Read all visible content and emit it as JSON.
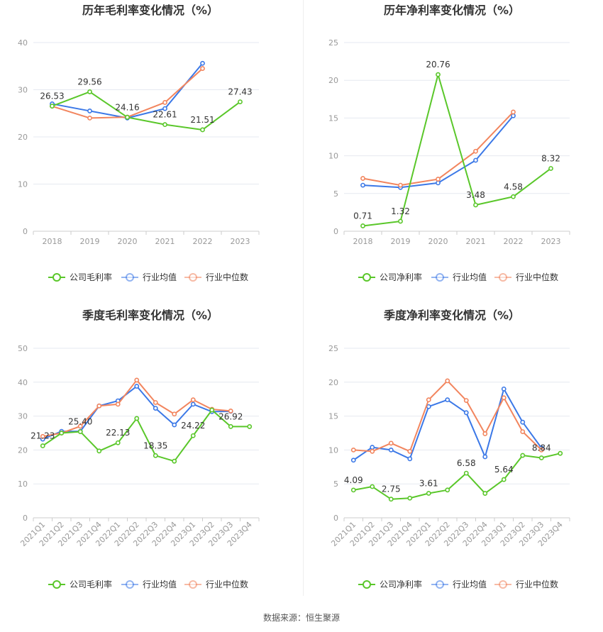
{
  "source_label": "数据来源：恒生聚源",
  "colors": {
    "company": "#5ac72a",
    "industry_avg": "#3b78e7",
    "industry_median": "#f2855e",
    "grid": "#e6e9f0",
    "axis": "#cccccc"
  },
  "chart_data": [
    {
      "type": "line",
      "title": "历年毛利率变化情况（%）",
      "categories": [
        "2018",
        "2019",
        "2020",
        "2021",
        "2022",
        "2023"
      ],
      "ylim": [
        0,
        40
      ],
      "yticks": [
        0,
        10,
        20,
        30,
        40
      ],
      "grid": true,
      "legend": "bottom",
      "series": [
        {
          "name": "公司毛利率",
          "key": "company",
          "values": [
            26.53,
            29.56,
            24.16,
            22.61,
            21.51,
            27.43
          ],
          "labels": [
            "26.53",
            "29.56",
            "24.16",
            "22.61",
            "21.51",
            "27.43"
          ]
        },
        {
          "name": "行业均值",
          "key": "industry_avg",
          "values": [
            27.0,
            25.5,
            24.0,
            26.0,
            35.6,
            null
          ]
        },
        {
          "name": "行业中位数",
          "key": "industry_median",
          "values": [
            26.5,
            24.0,
            24.2,
            27.3,
            34.5,
            null
          ]
        }
      ]
    },
    {
      "type": "line",
      "title": "历年净利率变化情况（%）",
      "categories": [
        "2018",
        "2019",
        "2020",
        "2021",
        "2022",
        "2023"
      ],
      "ylim": [
        0,
        25
      ],
      "yticks": [
        0,
        5,
        10,
        15,
        20,
        25
      ],
      "grid": true,
      "legend": "bottom",
      "series": [
        {
          "name": "公司净利率",
          "key": "company",
          "values": [
            0.71,
            1.32,
            20.76,
            3.48,
            4.58,
            8.32
          ],
          "labels": [
            "0.71",
            "1.32",
            "20.76",
            "3.48",
            "4.58",
            "8.32"
          ]
        },
        {
          "name": "行业均值",
          "key": "industry_avg",
          "values": [
            6.1,
            5.8,
            6.4,
            9.4,
            15.3,
            null
          ]
        },
        {
          "name": "行业中位数",
          "key": "industry_median",
          "values": [
            7.0,
            6.1,
            6.9,
            10.6,
            15.8,
            null
          ]
        }
      ]
    },
    {
      "type": "line",
      "title": "季度毛利率变化情况（%）",
      "categories": [
        "2021Q1",
        "2021Q2",
        "2021Q3",
        "2021Q4",
        "2022Q1",
        "2022Q2",
        "2022Q3",
        "2022Q4",
        "2023Q1",
        "2023Q2",
        "2023Q3",
        "2023Q4"
      ],
      "ylim": [
        0,
        50
      ],
      "yticks": [
        0,
        10,
        20,
        30,
        40,
        50
      ],
      "grid": true,
      "legend": "bottom",
      "series": [
        {
          "name": "公司毛利率",
          "key": "company",
          "values": [
            21.23,
            25.0,
            25.4,
            19.7,
            22.13,
            29.3,
            18.35,
            16.7,
            24.22,
            31.8,
            26.92,
            26.9
          ],
          "labels": [
            "21.23",
            null,
            "25.40",
            null,
            "22.13",
            null,
            "18.35",
            null,
            "24.22",
            null,
            "26.92",
            null
          ]
        },
        {
          "name": "行业均值",
          "key": "industry_avg",
          "values": [
            23.2,
            25.5,
            25.5,
            33.0,
            34.5,
            38.8,
            32.3,
            27.4,
            33.5,
            31.3,
            31.4,
            null
          ]
        },
        {
          "name": "行业中位数",
          "key": "industry_median",
          "values": [
            24.0,
            25.0,
            27.0,
            33.0,
            33.5,
            40.6,
            34.0,
            30.6,
            34.8,
            32.0,
            31.5,
            null
          ]
        }
      ]
    },
    {
      "type": "line",
      "title": "季度净利率变化情况（%）",
      "categories": [
        "2021Q1",
        "2021Q2",
        "2021Q3",
        "2021Q4",
        "2022Q1",
        "2022Q2",
        "2022Q3",
        "2022Q4",
        "2023Q1",
        "2023Q2",
        "2023Q3",
        "2023Q4"
      ],
      "ylim": [
        0,
        25
      ],
      "yticks": [
        0,
        5,
        10,
        15,
        20,
        25
      ],
      "grid": true,
      "legend": "bottom",
      "series": [
        {
          "name": "公司净利率",
          "key": "company",
          "values": [
            4.09,
            4.6,
            2.75,
            2.9,
            3.61,
            4.1,
            6.58,
            3.6,
            5.64,
            9.2,
            8.84,
            9.5
          ],
          "labels": [
            "4.09",
            null,
            "2.75",
            null,
            "3.61",
            null,
            "6.58",
            null,
            "5.64",
            null,
            "8.84",
            null
          ]
        },
        {
          "name": "行业均值",
          "key": "industry_avg",
          "values": [
            8.5,
            10.4,
            10.0,
            8.7,
            16.4,
            17.4,
            15.5,
            9.0,
            19.0,
            14.1,
            10.3,
            null
          ]
        },
        {
          "name": "行业中位数",
          "key": "industry_median",
          "values": [
            10.0,
            9.8,
            11.0,
            9.8,
            17.4,
            20.2,
            17.3,
            12.4,
            17.7,
            12.7,
            10.0,
            null
          ]
        }
      ]
    }
  ]
}
